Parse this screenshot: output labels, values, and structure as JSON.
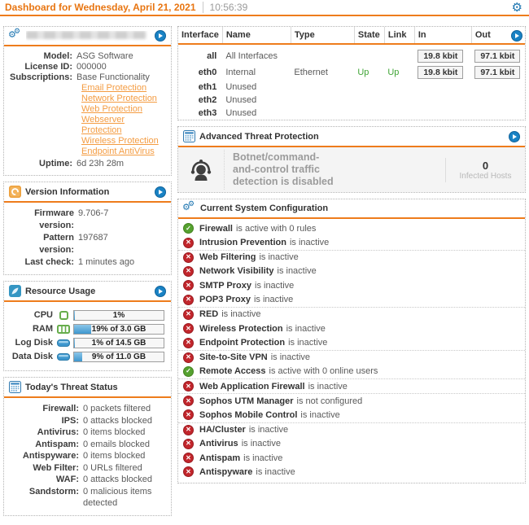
{
  "colors": {
    "accent": "#ee7c1c",
    "link": "#f49c42",
    "ok": "#55a12f",
    "fail": "#c2262c",
    "up_green": "#3fa435",
    "button_blue": "#1982c4"
  },
  "header": {
    "title": "Dashboard for Wednesday, April 21, 2021",
    "time": "10:56:39",
    "settings_icon": "gear-icon"
  },
  "system": {
    "title_redacted": true,
    "fields": [
      {
        "label": "Model:",
        "value": "ASG Software"
      },
      {
        "label": "License ID:",
        "value": "000000"
      },
      {
        "label": "Subscriptions:",
        "value": "Base Functionality"
      }
    ],
    "links": [
      "Email Protection",
      "Network Protection",
      "Web Protection",
      "Webserver Protection",
      "Wireless Protection",
      "Endpoint AntiVirus"
    ],
    "uptime": {
      "label": "Uptime:",
      "value": "6d 23h 28m"
    }
  },
  "version": {
    "title": "Version Information",
    "fields": [
      {
        "label": "Firmware version:",
        "value": "9.706-7"
      },
      {
        "label": "Pattern version:",
        "value": "197687"
      },
      {
        "label": "Last check:",
        "value": "1 minutes ago"
      }
    ]
  },
  "resources": {
    "title": "Resource Usage",
    "rows": [
      {
        "label": "CPU",
        "icon": "cpu-icon",
        "pct": 1,
        "text": "1%"
      },
      {
        "label": "RAM",
        "icon": "ram-icon",
        "pct": 19,
        "text": "19% of 3.0 GB"
      },
      {
        "label": "Log Disk",
        "icon": "disk-icon",
        "pct": 1,
        "text": "1% of 14.5 GB"
      },
      {
        "label": "Data Disk",
        "icon": "disk-icon",
        "pct": 9,
        "text": "9% of 11.0 GB"
      }
    ]
  },
  "threat": {
    "title": "Today's Threat Status",
    "rows": [
      {
        "label": "Firewall:",
        "value": "0 packets filtered"
      },
      {
        "label": "IPS:",
        "value": "0 attacks blocked"
      },
      {
        "label": "Antivirus:",
        "value": "0 items blocked"
      },
      {
        "label": "Antispam:",
        "value": "0 emails blocked"
      },
      {
        "label": "Antispyware:",
        "value": "0 items blocked"
      },
      {
        "label": "Web Filter:",
        "value": "0 URLs filtered"
      },
      {
        "label": "WAF:",
        "value": "0 attacks blocked"
      },
      {
        "label": "Sandstorm:",
        "value": "0 malicious items detected"
      }
    ]
  },
  "interfaces": {
    "headers": [
      "Interface",
      "Name",
      "Type",
      "State",
      "Link",
      "In",
      "Out"
    ],
    "rows": [
      {
        "interface": "all",
        "name": "All Interfaces",
        "type": "",
        "state": "",
        "link": "",
        "in": "19.8 kbit",
        "out": "97.1 kbit"
      },
      {
        "interface": "eth0",
        "name": "Internal",
        "type": "Ethernet",
        "state": "Up",
        "link": "Up",
        "in": "19.8 kbit",
        "out": "97.1 kbit"
      },
      {
        "interface": "eth1",
        "name": "Unused",
        "type": "",
        "state": "",
        "link": "",
        "in": "",
        "out": ""
      },
      {
        "interface": "eth2",
        "name": "Unused",
        "type": "",
        "state": "",
        "link": "",
        "in": "",
        "out": ""
      },
      {
        "interface": "eth3",
        "name": "Unused",
        "type": "",
        "state": "",
        "link": "",
        "in": "",
        "out": ""
      }
    ]
  },
  "atp": {
    "title": "Advanced Threat Protection",
    "message": "Botnet/command-and-control traffic detection is disabled",
    "count": "0",
    "count_label": "Infected Hosts"
  },
  "config": {
    "title": "Current System Configuration",
    "items": [
      {
        "name": "Firewall",
        "rest": "is active with 0 rules",
        "status": "ok"
      },
      {
        "name": "Intrusion Prevention",
        "rest": "is inactive",
        "status": "fail"
      },
      {
        "name": "Web Filtering",
        "rest": "is inactive",
        "status": "fail"
      },
      {
        "name": "Network Visibility",
        "rest": "is inactive",
        "status": "fail"
      },
      {
        "name": "SMTP Proxy",
        "rest": "is inactive",
        "status": "fail"
      },
      {
        "name": "POP3 Proxy",
        "rest": "is inactive",
        "status": "fail"
      },
      {
        "name": "RED",
        "rest": "is inactive",
        "status": "fail"
      },
      {
        "name": "Wireless Protection",
        "rest": "is inactive",
        "status": "fail"
      },
      {
        "name": "Endpoint Protection",
        "rest": "is inactive",
        "status": "fail"
      },
      {
        "name": "Site-to-Site VPN",
        "rest": "is inactive",
        "status": "fail"
      },
      {
        "name": "Remote Access",
        "rest": "is active with 0 online users",
        "status": "ok"
      },
      {
        "name": "Web Application Firewall",
        "rest": "is inactive",
        "status": "fail"
      },
      {
        "name": "Sophos UTM Manager",
        "rest": "is not configured",
        "status": "fail"
      },
      {
        "name": "Sophos Mobile Control",
        "rest": "is inactive",
        "status": "fail"
      },
      {
        "name": "HA/Cluster",
        "rest": "is inactive",
        "status": "fail"
      },
      {
        "name": "Antivirus",
        "rest": "is inactive",
        "status": "fail"
      },
      {
        "name": "Antispam",
        "rest": "is inactive",
        "status": "fail"
      },
      {
        "name": "Antispyware",
        "rest": "is inactive",
        "status": "fail"
      }
    ]
  }
}
